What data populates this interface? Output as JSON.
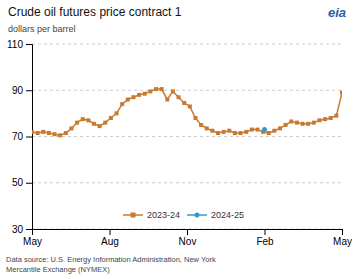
{
  "chart_data": {
    "type": "line",
    "title": "Crude oil futures price contract 1",
    "subtitle": "dollars per barrel",
    "annotations": [
      "Data source:  U.S. Energy Information Administration, New York\nMercantile Exchange (NYMEX)",
      "eia"
    ],
    "xlim": [
      0,
      12
    ],
    "xticks": [
      {
        "value": 0,
        "label": "May"
      },
      {
        "value": 3,
        "label": "Aug"
      },
      {
        "value": 6,
        "label": "Nov"
      },
      {
        "value": 9,
        "label": "Feb"
      },
      {
        "value": 12,
        "label": "May"
      }
    ],
    "ylim": [
      30,
      110
    ],
    "yticks": [
      30,
      50,
      70,
      90,
      110
    ],
    "grid": true,
    "legend": "bottom",
    "series": [
      {
        "name": "2023-24",
        "color": "#C87A30",
        "marker": "square",
        "x": [
          0,
          0.2181818182,
          0.4363636364,
          0.6545454545,
          0.8727272727,
          1.0909090909,
          1.3090909091,
          1.5272727273,
          1.7454545455,
          1.9636363636,
          2.1818181818,
          2.4,
          2.6181818182,
          2.8363636364,
          3.0545454545,
          3.2727272727,
          3.4909090909,
          3.7090909091,
          3.9272727273,
          4.1454545455,
          4.3636363636,
          4.5818181818,
          4.8,
          5.0181818182,
          5.2363636364,
          5.4545454545,
          5.6727272727,
          5.8909090909,
          6.1090909091,
          6.3272727273,
          6.5454545455,
          6.7636363636,
          6.9818181818,
          7.2,
          7.4181818182,
          7.6363636364,
          7.8545454545,
          8.0727272727,
          8.2909090909,
          8.5090909091,
          8.7272727273,
          8.9454545455,
          9.1636363636,
          9.3818181818,
          9.6,
          9.8181818182,
          10.0363636364,
          10.2545454545,
          10.4727272727,
          10.6909090909,
          10.9090909091,
          11.1272727273,
          11.3454545455,
          11.5636363636,
          11.7818181818,
          12
        ],
        "values": [
          72.0,
          71.5,
          72.0,
          71.5,
          71.0,
          70.5,
          71.5,
          73.5,
          76.0,
          77.5,
          77.0,
          75.5,
          74.5,
          76.0,
          78.0,
          80.0,
          84.0,
          86.0,
          87.0,
          88.0,
          88.5,
          89.5,
          90.5,
          90.5,
          86.0,
          89.5,
          87.0,
          84.5,
          83.0,
          78.0,
          75.0,
          73.5,
          72.5,
          71.5,
          72.0,
          72.5,
          71.5,
          71.5,
          72.0,
          73.0,
          73.0,
          72.0,
          71.5,
          72.5,
          73.5,
          75.0,
          76.5,
          76.0,
          75.5,
          75.5,
          76.0,
          77.0,
          77.5,
          78.0,
          79.0,
          89.0
        ]
      },
      {
        "name": "2024-25",
        "color": "#3399CC",
        "marker": "circle",
        "x": [
          9.0
        ],
        "values": [
          73.0
        ]
      }
    ]
  }
}
